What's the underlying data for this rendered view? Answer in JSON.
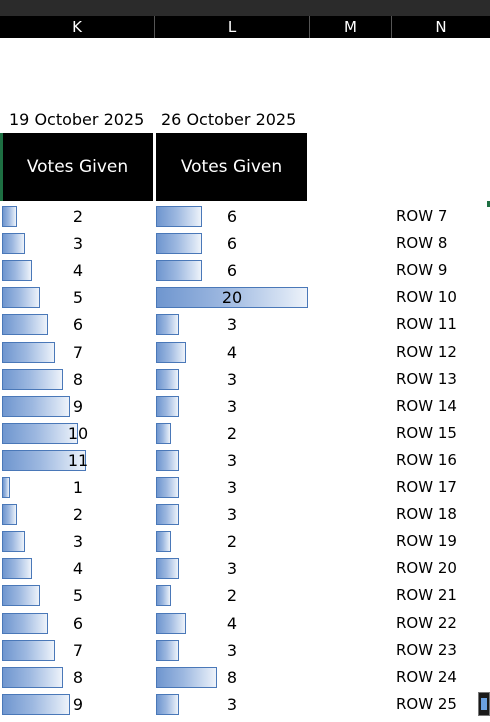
{
  "columns": [
    "K",
    "L",
    "M",
    "N"
  ],
  "dates": [
    "19 October 2025",
    "26 October 2025"
  ],
  "headers": [
    "Votes Given",
    "Votes Given"
  ],
  "max_value": 20,
  "rows": [
    {
      "label": "ROW 7",
      "k": 2,
      "l": 6
    },
    {
      "label": "ROW 8",
      "k": 3,
      "l": 6
    },
    {
      "label": "ROW 9",
      "k": 4,
      "l": 6
    },
    {
      "label": "ROW 10",
      "k": 5,
      "l": 20
    },
    {
      "label": "ROW 11",
      "k": 6,
      "l": 3
    },
    {
      "label": "ROW 12",
      "k": 7,
      "l": 4
    },
    {
      "label": "ROW 13",
      "k": 8,
      "l": 3
    },
    {
      "label": "ROW 14",
      "k": 9,
      "l": 3
    },
    {
      "label": "ROW 15",
      "k": 10,
      "l": 2
    },
    {
      "label": "ROW 16",
      "k": 11,
      "l": 3
    },
    {
      "label": "ROW 17",
      "k": 1,
      "l": 3
    },
    {
      "label": "ROW 18",
      "k": 2,
      "l": 3
    },
    {
      "label": "ROW 19",
      "k": 3,
      "l": 2
    },
    {
      "label": "ROW 20",
      "k": 4,
      "l": 3
    },
    {
      "label": "ROW 21",
      "k": 5,
      "l": 2
    },
    {
      "label": "ROW 22",
      "k": 6,
      "l": 4
    },
    {
      "label": "ROW 23",
      "k": 7,
      "l": 3
    },
    {
      "label": "ROW 24",
      "k": 8,
      "l": 8
    },
    {
      "label": "ROW 25",
      "k": 9,
      "l": 3
    }
  ]
}
